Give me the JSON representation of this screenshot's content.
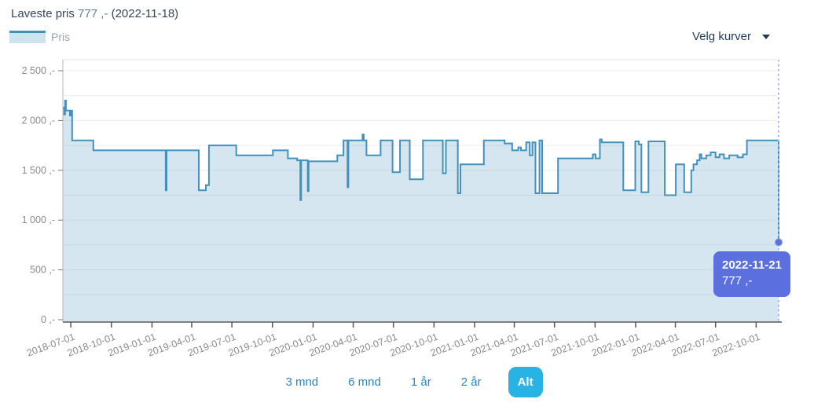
{
  "header": {
    "title_prefix": "Laveste pris ",
    "title_price": "777 ,-",
    "title_suffix": " (2022-11-18)"
  },
  "legend": {
    "label": "Pris"
  },
  "curves_dropdown": {
    "label": "Velg kurver",
    "icon": "chevron-down-icon"
  },
  "tooltip": {
    "date": "2022-11-21",
    "price": "777 ,-"
  },
  "range_buttons": {
    "options": [
      {
        "label": "3 mnd",
        "active": false
      },
      {
        "label": "6 mnd",
        "active": false
      },
      {
        "label": "1 år",
        "active": false
      },
      {
        "label": "2 år",
        "active": false
      },
      {
        "label": "Alt",
        "active": true
      }
    ]
  },
  "colors": {
    "line": "#4191bd",
    "area_fill": "rgba(67,142,189,0.22)",
    "grid": "#ececec",
    "plot_top_border": "#e3e3e3",
    "axis_left": "#b5b5b5",
    "axis_bottom": "#555555",
    "tick_text": "#8a8a8a",
    "cursor_line": "#a9b6ee",
    "marker": "#5b6fdf",
    "tooltip_bg": "#5b6fdf",
    "link_blue": "#2d85c4",
    "active_button": "#29b2e4",
    "title_navy": "#33475c"
  },
  "chart_data": {
    "type": "area",
    "step": true,
    "title": "Pris",
    "legend_position": "top-left",
    "grid": "horizontal",
    "x_axis": {
      "start": "2018-06-13",
      "end": "2022-11-21",
      "tick_labels": [
        "2018-07-01",
        "2018-10-01",
        "2019-01-01",
        "2019-04-01",
        "2019-07-01",
        "2019-10-01",
        "2020-01-01",
        "2020-04-01",
        "2020-07-01",
        "2020-10-01",
        "2021-01-01",
        "2021-04-01",
        "2021-07-01",
        "2021-10-01",
        "2022-01-01",
        "2022-04-01",
        "2022-07-01",
        "2022-10-01"
      ]
    },
    "y_axis": {
      "min": 0,
      "max": 2500,
      "minor_grid_step": 250,
      "ticks": [
        {
          "value": 0,
          "label": "0 ,-"
        },
        {
          "value": 500,
          "label": "500 ,-"
        },
        {
          "value": 1000,
          "label": "1 000 ,-"
        },
        {
          "value": 1500,
          "label": "1 500 ,-"
        },
        {
          "value": 2000,
          "label": "2 000 ,-"
        },
        {
          "value": 2500,
          "label": "2 500 ,-"
        }
      ]
    },
    "series": [
      {
        "name": "Pris",
        "points": [
          [
            "2018-06-13",
            2130
          ],
          [
            "2018-06-16",
            2060
          ],
          [
            "2018-06-18",
            2200
          ],
          [
            "2018-06-20",
            2100
          ],
          [
            "2018-06-29",
            2050
          ],
          [
            "2018-07-01",
            2100
          ],
          [
            "2018-07-04",
            1800
          ],
          [
            "2018-08-21",
            1700
          ],
          [
            "2019-02-01",
            1300
          ],
          [
            "2019-02-03",
            1700
          ],
          [
            "2019-04-17",
            1300
          ],
          [
            "2019-05-03",
            1350
          ],
          [
            "2019-05-10",
            1750
          ],
          [
            "2019-07-11",
            1650
          ],
          [
            "2019-10-02",
            1700
          ],
          [
            "2019-11-05",
            1620
          ],
          [
            "2019-11-26",
            1600
          ],
          [
            "2019-12-03",
            1200
          ],
          [
            "2019-12-05",
            1600
          ],
          [
            "2019-12-20",
            1290
          ],
          [
            "2019-12-22",
            1590
          ],
          [
            "2020-02-25",
            1650
          ],
          [
            "2020-03-10",
            1800
          ],
          [
            "2020-03-19",
            1330
          ],
          [
            "2020-03-21",
            1800
          ],
          [
            "2020-04-22",
            1860
          ],
          [
            "2020-04-25",
            1800
          ],
          [
            "2020-05-01",
            1650
          ],
          [
            "2020-06-02",
            1800
          ],
          [
            "2020-06-29",
            1480
          ],
          [
            "2020-07-16",
            1800
          ],
          [
            "2020-08-07",
            1410
          ],
          [
            "2020-09-06",
            1800
          ],
          [
            "2020-10-21",
            1470
          ],
          [
            "2020-10-28",
            1800
          ],
          [
            "2020-11-24",
            1270
          ],
          [
            "2020-11-30",
            1560
          ],
          [
            "2021-01-22",
            1800
          ],
          [
            "2021-03-10",
            1770
          ],
          [
            "2021-03-27",
            1700
          ],
          [
            "2021-04-10",
            1730
          ],
          [
            "2021-04-16",
            1700
          ],
          [
            "2021-04-28",
            1780
          ],
          [
            "2021-05-06",
            1650
          ],
          [
            "2021-05-12",
            1780
          ],
          [
            "2021-05-19",
            1270
          ],
          [
            "2021-05-28",
            1800
          ],
          [
            "2021-06-03",
            1270
          ],
          [
            "2021-07-09",
            1620
          ],
          [
            "2021-09-26",
            1660
          ],
          [
            "2021-10-02",
            1620
          ],
          [
            "2021-10-12",
            1810
          ],
          [
            "2021-10-16",
            1780
          ],
          [
            "2021-12-04",
            1300
          ],
          [
            "2021-12-31",
            1790
          ],
          [
            "2022-01-08",
            1760
          ],
          [
            "2022-01-14",
            1280
          ],
          [
            "2022-01-30",
            1790
          ],
          [
            "2022-03-08",
            1250
          ],
          [
            "2022-04-02",
            1560
          ],
          [
            "2022-04-21",
            1280
          ],
          [
            "2022-05-07",
            1500
          ],
          [
            "2022-05-12",
            1560
          ],
          [
            "2022-05-20",
            1600
          ],
          [
            "2022-05-26",
            1660
          ],
          [
            "2022-05-30",
            1620
          ],
          [
            "2022-06-10",
            1650
          ],
          [
            "2022-06-20",
            1680
          ],
          [
            "2022-07-01",
            1630
          ],
          [
            "2022-07-10",
            1660
          ],
          [
            "2022-07-20",
            1620
          ],
          [
            "2022-08-01",
            1650
          ],
          [
            "2022-08-20",
            1630
          ],
          [
            "2022-09-01",
            1660
          ],
          [
            "2022-09-10",
            1800
          ],
          [
            "2022-11-21",
            777
          ]
        ]
      }
    ],
    "cursor": {
      "date": "2022-11-21",
      "value": 777
    },
    "lowest_point": {
      "date": "2022-11-18",
      "value": 777
    }
  }
}
